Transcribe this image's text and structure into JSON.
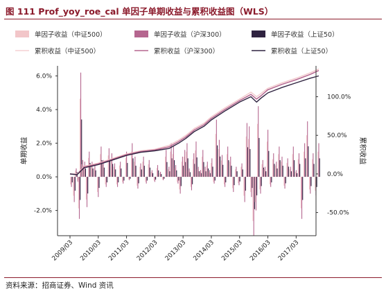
{
  "figure": {
    "title": "图 111 Prof_yoy_roe_cal 单因子单期收益与累积收益图（WLS）",
    "source": "资料来源：招商证券、Wind 资讯"
  },
  "colors": {
    "zz500": "#f2c6c9",
    "hs300": "#b5668f",
    "sz50": "#2f2340",
    "title": "#8b1a2b",
    "axis": "#333333"
  },
  "chart_data": {
    "type": "bar",
    "legend": [
      {
        "label": "单因子收益（中证500）",
        "kind": "bar",
        "color": "#f2c6c9"
      },
      {
        "label": "单因子收益（沪深300）",
        "kind": "bar",
        "color": "#b5668f"
      },
      {
        "label": "单因子收益（上证50）",
        "kind": "bar",
        "color": "#2f2340"
      },
      {
        "label": "累积收益（中证500）",
        "kind": "line",
        "color": "#f2c6c9"
      },
      {
        "label": "累积收益（沪深300）",
        "kind": "line",
        "color": "#b5668f"
      },
      {
        "label": "累积收益（上证50）",
        "kind": "line",
        "color": "#2f2340"
      }
    ],
    "ylabel_left": "单期收益",
    "ylabel_right": "累积收益",
    "y_left_ticks": [
      "6.0%",
      "4.0%",
      "2.0%",
      "0.0%",
      "-2.0%"
    ],
    "y_left_values": [
      6,
      4,
      2,
      0,
      -2
    ],
    "y_left_range": [
      -3.5,
      6.6
    ],
    "y_right_ticks": [
      "100.0%",
      "50.0%",
      "0.0%",
      "-50.0%"
    ],
    "y_right_values": [
      100,
      50,
      0,
      -50
    ],
    "y_right_range": [
      -80,
      140
    ],
    "x_ticks": [
      "2009/03",
      "2010/03",
      "2011/03",
      "2012/03",
      "2013/03",
      "2014/03",
      "2015/03",
      "2016/03",
      "2017/03"
    ],
    "x_range": [
      2009.0,
      2017.85
    ],
    "cum_points": [
      {
        "x": 2009.0,
        "sz50": 0,
        "hs300": 0,
        "zz500": 0
      },
      {
        "x": 2009.25,
        "sz50": -1,
        "hs300": -1,
        "zz500": 0
      },
      {
        "x": 2009.5,
        "sz50": 8,
        "hs300": 9,
        "zz500": 10
      },
      {
        "x": 2009.75,
        "sz50": 10,
        "hs300": 11,
        "zz500": 12
      },
      {
        "x": 2010.0,
        "sz50": 12,
        "hs300": 13,
        "zz500": 14
      },
      {
        "x": 2010.5,
        "sz50": 18,
        "hs300": 19,
        "zz500": 20
      },
      {
        "x": 2011.0,
        "sz50": 24,
        "hs300": 25,
        "zz500": 26
      },
      {
        "x": 2011.5,
        "sz50": 28,
        "hs300": 29,
        "zz500": 30
      },
      {
        "x": 2012.0,
        "sz50": 30,
        "hs300": 31,
        "zz500": 32
      },
      {
        "x": 2012.5,
        "sz50": 33,
        "hs300": 35,
        "zz500": 37
      },
      {
        "x": 2012.85,
        "sz50": 40,
        "hs300": 42,
        "zz500": 44
      },
      {
        "x": 2013.1,
        "sz50": 46,
        "hs300": 48,
        "zz500": 50
      },
      {
        "x": 2013.4,
        "sz50": 55,
        "hs300": 57,
        "zz500": 59
      },
      {
        "x": 2013.75,
        "sz50": 62,
        "hs300": 64,
        "zz500": 66
      },
      {
        "x": 2014.0,
        "sz50": 70,
        "hs300": 72,
        "zz500": 74
      },
      {
        "x": 2014.5,
        "sz50": 82,
        "hs300": 84,
        "zz500": 86
      },
      {
        "x": 2015.0,
        "sz50": 93,
        "hs300": 95,
        "zz500": 97
      },
      {
        "x": 2015.4,
        "sz50": 100,
        "hs300": 103,
        "zz500": 106
      },
      {
        "x": 2015.6,
        "sz50": 93,
        "hs300": 97,
        "zz500": 100
      },
      {
        "x": 2015.75,
        "sz50": 98,
        "hs300": 101,
        "zz500": 104
      },
      {
        "x": 2016.0,
        "sz50": 105,
        "hs300": 109,
        "zz500": 111
      },
      {
        "x": 2016.5,
        "sz50": 112,
        "hs300": 116,
        "zz500": 118
      },
      {
        "x": 2017.0,
        "sz50": 118,
        "hs300": 122,
        "zz500": 124
      },
      {
        "x": 2017.5,
        "sz50": 124,
        "hs300": 129,
        "zz500": 131
      },
      {
        "x": 2017.8,
        "sz50": 127,
        "hs300": 134,
        "zz500": 136
      }
    ],
    "bars": [
      {
        "x": 2009.05,
        "v": -0.6
      },
      {
        "x": 2009.15,
        "v": -1.5
      },
      {
        "x": 2009.22,
        "v": 0.5
      },
      {
        "x": 2009.28,
        "v": -0.3
      },
      {
        "x": 2009.33,
        "v": -2.5
      },
      {
        "x": 2009.38,
        "v": 6.2
      },
      {
        "x": 2009.45,
        "v": 1.0
      },
      {
        "x": 2009.52,
        "v": 0.9
      },
      {
        "x": 2009.6,
        "v": -1.8
      },
      {
        "x": 2009.68,
        "v": 1.5
      },
      {
        "x": 2009.78,
        "v": 0.9
      },
      {
        "x": 2009.88,
        "v": 0.7
      },
      {
        "x": 2010.0,
        "v": -1.2
      },
      {
        "x": 2010.1,
        "v": 1.8
      },
      {
        "x": 2010.18,
        "v": 1.0
      },
      {
        "x": 2010.28,
        "v": -0.6
      },
      {
        "x": 2010.38,
        "v": 1.7
      },
      {
        "x": 2010.48,
        "v": 1.4
      },
      {
        "x": 2010.58,
        "v": 0.8
      },
      {
        "x": 2010.68,
        "v": -0.6
      },
      {
        "x": 2010.78,
        "v": 0.9
      },
      {
        "x": 2010.88,
        "v": -0.4
      },
      {
        "x": 2011.0,
        "v": 1.5
      },
      {
        "x": 2011.1,
        "v": -0.2
      },
      {
        "x": 2011.2,
        "v": 2.0
      },
      {
        "x": 2011.3,
        "v": 1.2
      },
      {
        "x": 2011.4,
        "v": -0.7
      },
      {
        "x": 2011.5,
        "v": 0.8
      },
      {
        "x": 2011.6,
        "v": 1.2
      },
      {
        "x": 2011.7,
        "v": -0.4
      },
      {
        "x": 2011.8,
        "v": 1.0
      },
      {
        "x": 2011.9,
        "v": 0.4
      },
      {
        "x": 2012.0,
        "v": -0.3
      },
      {
        "x": 2012.1,
        "v": 0.7
      },
      {
        "x": 2012.2,
        "v": 0.3
      },
      {
        "x": 2012.3,
        "v": -0.2
      },
      {
        "x": 2012.4,
        "v": 1.6
      },
      {
        "x": 2012.5,
        "v": 0.6
      },
      {
        "x": 2012.58,
        "v": 2.0
      },
      {
        "x": 2012.66,
        "v": 1.8
      },
      {
        "x": 2012.74,
        "v": 0.7
      },
      {
        "x": 2012.82,
        "v": -0.4
      },
      {
        "x": 2012.9,
        "v": -1.0
      },
      {
        "x": 2012.98,
        "v": 1.2
      },
      {
        "x": 2013.06,
        "v": 1.6
      },
      {
        "x": 2013.14,
        "v": 2.0
      },
      {
        "x": 2013.22,
        "v": 0.5
      },
      {
        "x": 2013.3,
        "v": -0.8
      },
      {
        "x": 2013.38,
        "v": 1.4
      },
      {
        "x": 2013.46,
        "v": 2.1
      },
      {
        "x": 2013.54,
        "v": 0.6
      },
      {
        "x": 2013.62,
        "v": 0.4
      },
      {
        "x": 2013.7,
        "v": 1.6
      },
      {
        "x": 2013.78,
        "v": 0.6
      },
      {
        "x": 2013.86,
        "v": 0.9
      },
      {
        "x": 2013.94,
        "v": 0.4
      },
      {
        "x": 2014.02,
        "v": 1.1
      },
      {
        "x": 2014.1,
        "v": -0.4
      },
      {
        "x": 2014.18,
        "v": 3.4
      },
      {
        "x": 2014.28,
        "v": 2.2
      },
      {
        "x": 2014.38,
        "v": 1.3
      },
      {
        "x": 2014.48,
        "v": -0.6
      },
      {
        "x": 2014.58,
        "v": 1.8
      },
      {
        "x": 2014.68,
        "v": 1.2
      },
      {
        "x": 2014.78,
        "v": -0.9
      },
      {
        "x": 2014.88,
        "v": 0.6
      },
      {
        "x": 2014.98,
        "v": -0.5
      },
      {
        "x": 2015.08,
        "v": 0.8
      },
      {
        "x": 2015.18,
        "v": -1.5
      },
      {
        "x": 2015.26,
        "v": 3.2
      },
      {
        "x": 2015.34,
        "v": 3.0
      },
      {
        "x": 2015.42,
        "v": -1.2
      },
      {
        "x": 2015.5,
        "v": -3.5
      },
      {
        "x": 2015.58,
        "v": -2.0
      },
      {
        "x": 2015.66,
        "v": 4.2
      },
      {
        "x": 2015.74,
        "v": -1.0
      },
      {
        "x": 2015.82,
        "v": 1.0
      },
      {
        "x": 2015.9,
        "v": 0.6
      },
      {
        "x": 2016.0,
        "v": 2.8
      },
      {
        "x": 2016.1,
        "v": -0.6
      },
      {
        "x": 2016.2,
        "v": 1.4
      },
      {
        "x": 2016.3,
        "v": 0.9
      },
      {
        "x": 2016.4,
        "v": 1.8
      },
      {
        "x": 2016.5,
        "v": 1.2
      },
      {
        "x": 2016.6,
        "v": -0.7
      },
      {
        "x": 2016.7,
        "v": 1.1
      },
      {
        "x": 2016.8,
        "v": 0.6
      },
      {
        "x": 2016.9,
        "v": 1.8
      },
      {
        "x": 2017.0,
        "v": 0.4
      },
      {
        "x": 2017.1,
        "v": 1.4
      },
      {
        "x": 2017.2,
        "v": -2.5
      },
      {
        "x": 2017.3,
        "v": 2.0
      },
      {
        "x": 2017.4,
        "v": 3.3
      },
      {
        "x": 2017.5,
        "v": -1.0
      },
      {
        "x": 2017.6,
        "v": 1.4
      },
      {
        "x": 2017.7,
        "v": -1.1
      },
      {
        "x": 2017.8,
        "v": 2.0
      }
    ]
  }
}
